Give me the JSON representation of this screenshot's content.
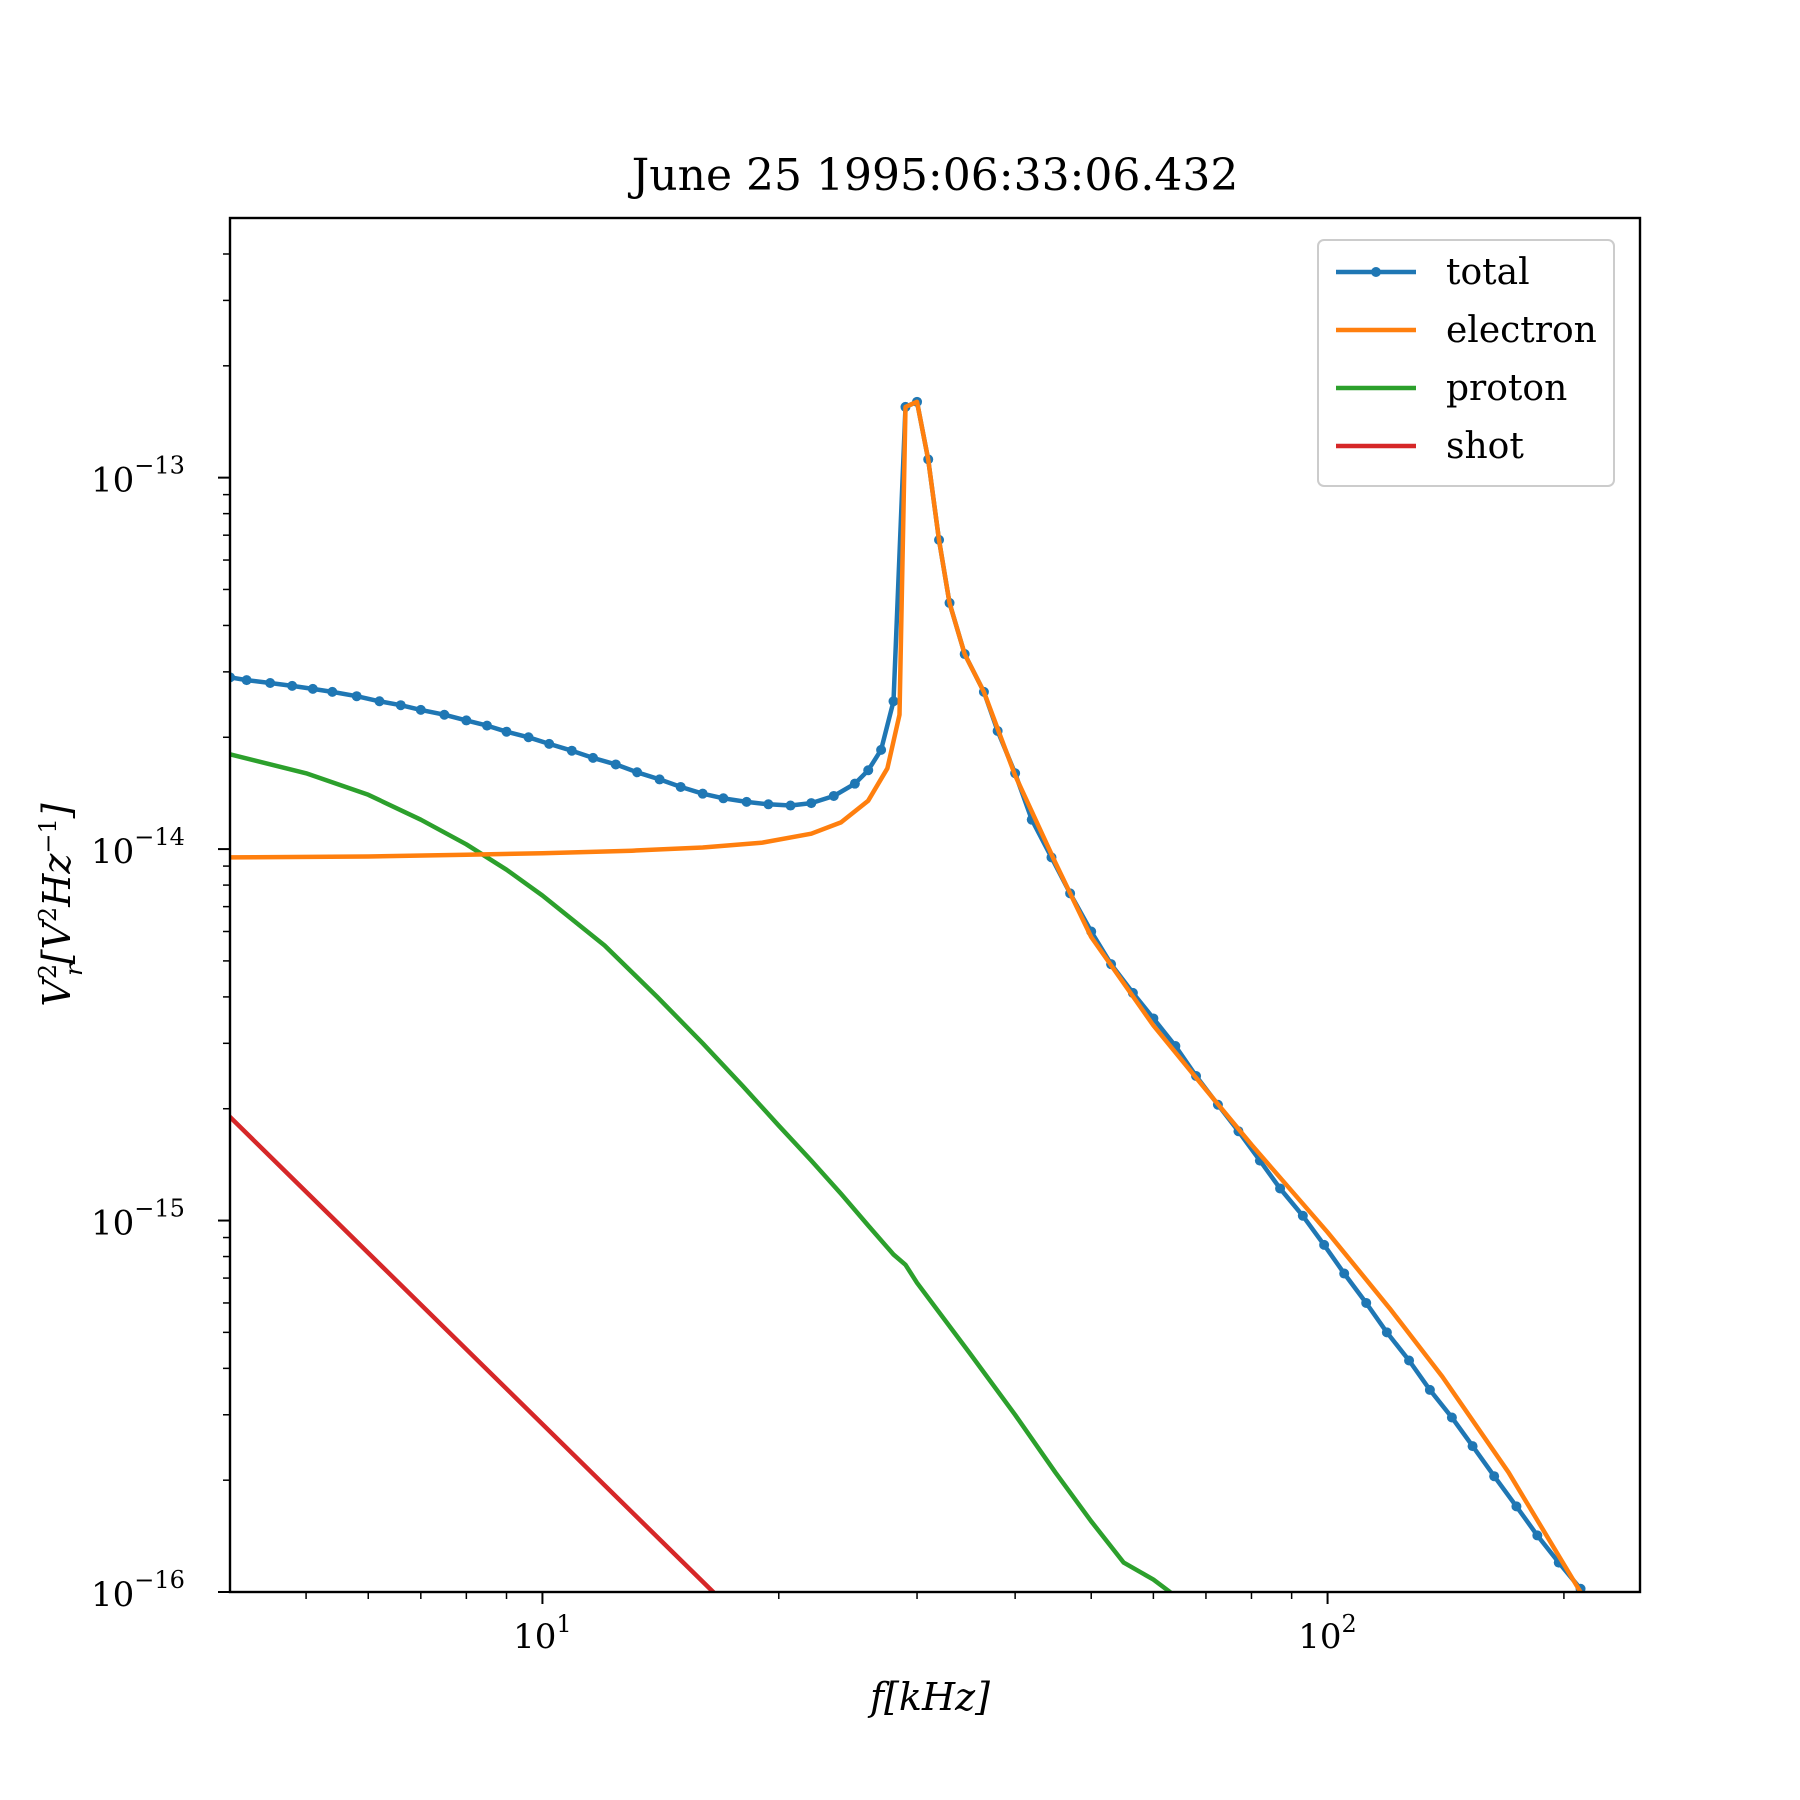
{
  "chart_data": {
    "type": "line",
    "title": "June 25 1995:06:33:06.432",
    "xlabel": "f[kHz]",
    "ylabel": "V_r^2[V^2Hz^-1]",
    "xscale": "log",
    "yscale": "log",
    "xlim": [
      4,
      250
    ],
    "ylim": [
      1e-16,
      5e-13
    ],
    "x_major_ticks": [
      {
        "value": 10,
        "base": "10",
        "exp": "1"
      },
      {
        "value": 100,
        "base": "10",
        "exp": "2"
      }
    ],
    "y_major_ticks": [
      {
        "value": 1e-16,
        "base": "10",
        "exp": "−16"
      },
      {
        "value": 1e-15,
        "base": "10",
        "exp": "−15"
      },
      {
        "value": 1e-14,
        "base": "10",
        "exp": "−14"
      },
      {
        "value": 1e-13,
        "base": "10",
        "exp": "−13"
      }
    ],
    "grid": false,
    "legend_position": "top-right",
    "series": [
      {
        "name": "total",
        "color": "#1f77b4",
        "marker": "dot",
        "x": [
          4.0,
          4.2,
          4.5,
          4.8,
          5.1,
          5.4,
          5.8,
          6.2,
          6.6,
          7.0,
          7.5,
          8.0,
          8.5,
          9.0,
          9.6,
          10.2,
          10.9,
          11.6,
          12.4,
          13.2,
          14.1,
          15.0,
          16.0,
          17.0,
          18.2,
          19.4,
          20.7,
          22.0,
          23.5,
          25.0,
          26.0,
          27.0,
          28.0,
          29.0,
          30.0,
          31.0,
          32.0,
          33.0,
          34.5,
          36.5,
          38.0,
          40.0,
          42.0,
          44.5,
          47.0,
          50.0,
          53.0,
          56.5,
          60.0,
          64.0,
          68.0,
          72.5,
          77.0,
          82.0,
          87.0,
          93.0,
          99.0,
          105.0,
          112.0,
          119.0,
          127.0,
          135.0,
          144.0,
          153.0,
          163.0,
          174.0,
          185.0,
          197.0,
          210.0
        ],
        "y": [
          2.9e-14,
          2.85e-14,
          2.8e-14,
          2.75e-14,
          2.7e-14,
          2.65e-14,
          2.58e-14,
          2.5e-14,
          2.44e-14,
          2.37e-14,
          2.3e-14,
          2.22e-14,
          2.15e-14,
          2.07e-14,
          2e-14,
          1.92e-14,
          1.84e-14,
          1.76e-14,
          1.69e-14,
          1.61e-14,
          1.54e-14,
          1.47e-14,
          1.41e-14,
          1.37e-14,
          1.34e-14,
          1.32e-14,
          1.31e-14,
          1.33e-14,
          1.39e-14,
          1.5e-14,
          1.63e-14,
          1.85e-14,
          2.5e-14,
          1.55e-13,
          1.6e-13,
          1.12e-13,
          6.8e-14,
          4.6e-14,
          3.35e-14,
          2.65e-14,
          2.08e-14,
          1.6e-14,
          1.2e-14,
          9.5e-15,
          7.6e-15,
          6e-15,
          4.9e-15,
          4.1e-15,
          3.5e-15,
          2.95e-15,
          2.45e-15,
          2.05e-15,
          1.74e-15,
          1.45e-15,
          1.22e-15,
          1.03e-15,
          8.6e-16,
          7.2e-16,
          6e-16,
          5e-16,
          4.2e-16,
          3.5e-16,
          2.95e-16,
          2.47e-16,
          2.05e-16,
          1.7e-16,
          1.42e-16,
          1.2e-16,
          1.02e-16
        ]
      },
      {
        "name": "electron",
        "color": "#ff7f0e",
        "marker": "none",
        "x": [
          4.0,
          6.0,
          8.0,
          10.0,
          13.0,
          16.0,
          19.0,
          22.0,
          24.0,
          26.0,
          27.5,
          28.5,
          29.0,
          30.0,
          31.0,
          32.0,
          33.0,
          34.5,
          36.5,
          40.0,
          45.0,
          50.0,
          60.0,
          70.0,
          80.0,
          100.0,
          120.0,
          140.0,
          170.0,
          210.0
        ],
        "y": [
          9.5e-15,
          9.55e-15,
          9.65e-15,
          9.75e-15,
          9.9e-15,
          1.01e-14,
          1.04e-14,
          1.1e-14,
          1.18e-14,
          1.35e-14,
          1.65e-14,
          2.3e-14,
          1.55e-13,
          1.6e-13,
          1.12e-13,
          6.8e-14,
          4.6e-14,
          3.35e-14,
          2.65e-14,
          1.58e-14,
          9.2e-15,
          5.8e-15,
          3.35e-15,
          2.25e-15,
          1.6e-15,
          9.3e-16,
          5.8e-16,
          3.8e-16,
          2.1e-16,
          1e-16
        ]
      },
      {
        "name": "proton",
        "color": "#2ca02c",
        "marker": "none",
        "x": [
          4.0,
          5.0,
          6.0,
          7.0,
          8.0,
          9.0,
          10.0,
          12.0,
          14.0,
          16.0,
          18.0,
          20.0,
          22.0,
          24.0,
          26.0,
          28.0,
          29.0,
          30.0,
          35.0,
          40.0,
          45.0,
          50.0,
          55.0,
          60.0,
          63.0
        ],
        "y": [
          1.8e-14,
          1.6e-14,
          1.4e-14,
          1.2e-14,
          1.03e-14,
          8.8e-15,
          7.5e-15,
          5.5e-15,
          4e-15,
          3e-15,
          2.3e-15,
          1.8e-15,
          1.45e-15,
          1.18e-15,
          9.7e-16,
          8.1e-16,
          7.6e-16,
          6.8e-16,
          4.4e-16,
          3e-16,
          2.1e-16,
          1.55e-16,
          1.2e-16,
          1.08e-16,
          1e-16
        ]
      },
      {
        "name": "shot",
        "color": "#d62728",
        "marker": "none",
        "x": [
          4.0,
          16.5
        ],
        "y": [
          1.9e-15,
          1e-16
        ]
      }
    ]
  }
}
